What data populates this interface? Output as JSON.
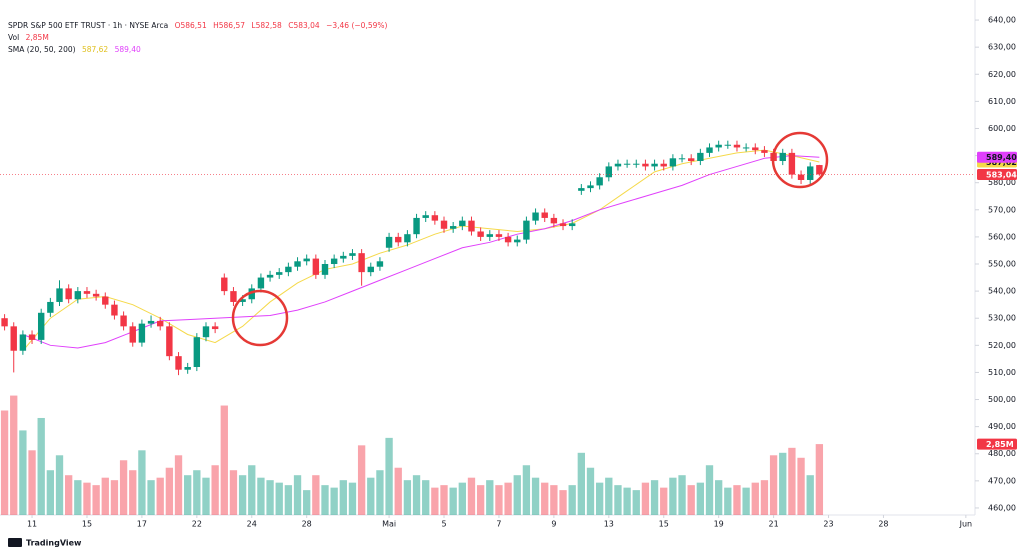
{
  "chart_data": {
    "type": "candlestick",
    "title": "SPDR S&P 500 ETF TRUST · 1h · NYSE Arca",
    "legend": {
      "ohlc": [
        "O586,51",
        "H586,57",
        "L582,58",
        "C583,04",
        "−3,46 (−0,59%)"
      ],
      "vol_label": "Vol",
      "vol_value": "2,85M",
      "sma_label": "SMA (20, 50, 200)",
      "sma_values": [
        "587,62",
        "589,40"
      ]
    },
    "xlim": [
      -0.5,
      106
    ],
    "xticks": [
      {
        "value": 3,
        "label": "11"
      },
      {
        "value": 9,
        "label": "15"
      },
      {
        "value": 15,
        "label": "17"
      },
      {
        "value": 21,
        "label": "22"
      },
      {
        "value": 27,
        "label": "24"
      },
      {
        "value": 33,
        "label": "28"
      },
      {
        "value": 42,
        "label": "Mai"
      },
      {
        "value": 48,
        "label": "5"
      },
      {
        "value": 54,
        "label": "7"
      },
      {
        "value": 60,
        "label": "9"
      },
      {
        "value": 66,
        "label": "13"
      },
      {
        "value": 72,
        "label": "15"
      },
      {
        "value": 78,
        "label": "19"
      },
      {
        "value": 84,
        "label": "21"
      },
      {
        "value": 90,
        "label": "23"
      },
      {
        "value": 96,
        "label": "28"
      },
      {
        "value": 105,
        "label": "Jun"
      }
    ],
    "ylim": [
      457.4,
      647.4
    ],
    "yticks": [
      {
        "value": 460,
        "label": "460,00"
      },
      {
        "value": 470,
        "label": "470,00"
      },
      {
        "value": 480,
        "label": "480,00"
      },
      {
        "value": 490,
        "label": "490,00"
      },
      {
        "value": 500,
        "label": "500,00"
      },
      {
        "value": 510,
        "label": "510,00"
      },
      {
        "value": 520,
        "label": "520,00"
      },
      {
        "value": 530,
        "label": "530,00"
      },
      {
        "value": 540,
        "label": "540,00"
      },
      {
        "value": 550,
        "label": "550,00"
      },
      {
        "value": 560,
        "label": "560,00"
      },
      {
        "value": 570,
        "label": "570,00"
      },
      {
        "value": 580,
        "label": "580,00"
      },
      {
        "value": 590,
        "label": "590,00"
      },
      {
        "value": 600,
        "label": "600,00"
      },
      {
        "value": 610,
        "label": "610,00"
      },
      {
        "value": 620,
        "label": "620,00"
      },
      {
        "value": 630,
        "label": "630,00"
      },
      {
        "value": 640,
        "label": "640,00"
      }
    ],
    "y2lim": [
      0,
      20.7
    ],
    "grid": false,
    "up_color": "#089981",
    "down_color": "#f23645",
    "series": [
      {
        "open": [
          530,
          527,
          518,
          524,
          522,
          532,
          536,
          541,
          537,
          540,
          539,
          538,
          535,
          531,
          527,
          521,
          528,
          529,
          527,
          516,
          511,
          512,
          523,
          527,
          545,
          540,
          536,
          537,
          541,
          545,
          546,
          547,
          549,
          551,
          552,
          546,
          550,
          552,
          553,
          554,
          547,
          549,
          556,
          560,
          558,
          561,
          567,
          568,
          566,
          563,
          564,
          566,
          562,
          560,
          561,
          560,
          558,
          559,
          566,
          569,
          567,
          565,
          564,
          577,
          578,
          579,
          582,
          586,
          587,
          587,
          587,
          586,
          587,
          586,
          589,
          589,
          588,
          591,
          593,
          594,
          594,
          593,
          593,
          592,
          591,
          588,
          591,
          583,
          581,
          586.51
        ],
        "high": [
          531.5,
          528.5,
          525.5,
          525.5,
          533.5,
          537.5,
          544,
          542.5,
          541.5,
          541.5,
          540.5,
          539.5,
          536.5,
          532.5,
          528.5,
          529.5,
          531,
          530.5,
          528.5,
          517.5,
          513.5,
          524.5,
          528.5,
          528.5,
          546.5,
          541.5,
          538.5,
          542.5,
          546.5,
          547.5,
          548.5,
          550.5,
          552.5,
          553.5,
          553.5,
          551.5,
          553.5,
          554.5,
          555.5,
          555.5,
          550.5,
          552.5,
          561.5,
          561.5,
          562.5,
          568.5,
          569.5,
          569.5,
          567.5,
          565.5,
          567.5,
          567.5,
          563.5,
          562.5,
          562.5,
          561.5,
          560.5,
          567.5,
          570.5,
          570.5,
          568.5,
          566.5,
          566.5,
          579.5,
          580.5,
          583.5,
          587.5,
          588.5,
          588.5,
          588.5,
          588.5,
          588.5,
          588.5,
          590.5,
          590.5,
          590.5,
          592.5,
          594.5,
          595.5,
          595.5,
          595.5,
          594.5,
          594.5,
          593.5,
          592.5,
          592.5,
          592.5,
          584.5,
          587.5,
          586.57
        ],
        "low": [
          525.5,
          510,
          516.5,
          520.5,
          520.5,
          530.5,
          534.5,
          535.5,
          535.5,
          537.5,
          536.5,
          533.5,
          529.5,
          525.5,
          519.5,
          519.5,
          526.5,
          525.5,
          514.5,
          509,
          509.5,
          510.5,
          521.5,
          524.5,
          538.5,
          534.5,
          534.5,
          535.5,
          539.5,
          543.5,
          544.5,
          545.5,
          547.5,
          549.5,
          544.5,
          544.5,
          548.5,
          550.5,
          551.5,
          542,
          545.5,
          547.5,
          554.5,
          556.5,
          556.5,
          559.5,
          565.5,
          564.5,
          561.5,
          561.5,
          562.5,
          560.5,
          558.5,
          558.5,
          558.5,
          556.5,
          556.5,
          557.5,
          564.5,
          565.5,
          563.5,
          562.5,
          562.5,
          575.5,
          576.5,
          577.5,
          580.5,
          584.5,
          585.5,
          585.5,
          584.5,
          584.5,
          584.5,
          584.5,
          587.5,
          586.5,
          586.5,
          589.5,
          591.5,
          592.5,
          591.5,
          591.5,
          590.5,
          589.5,
          586.5,
          586.5,
          581.5,
          579.5,
          579.5,
          582.58
        ],
        "close": [
          527,
          518,
          524,
          522,
          532,
          536,
          541,
          537,
          540,
          539,
          538,
          535,
          531,
          527,
          521,
          528,
          529,
          527,
          516,
          511,
          512,
          523,
          527,
          526,
          540,
          536,
          537,
          541,
          545,
          546,
          547,
          549,
          551,
          552,
          546,
          550,
          552,
          553,
          554,
          547,
          549,
          551,
          560,
          558,
          561,
          567,
          568,
          566,
          563,
          564,
          566,
          562,
          560,
          561,
          560,
          558,
          559,
          566,
          569,
          567,
          565,
          564,
          565,
          578,
          579,
          582,
          586,
          587,
          587,
          587,
          586,
          587,
          586,
          589,
          589,
          588,
          591,
          593,
          594,
          594,
          593,
          593,
          592,
          591,
          588,
          591,
          583,
          581,
          586,
          583.04
        ],
        "last_label": "583,04"
      },
      {
        "name": "Vol",
        "axis": "y2",
        "values": [
          4.2,
          4.8,
          3.4,
          2.6,
          3.9,
          1.8,
          2.4,
          1.6,
          1.4,
          1.3,
          1.2,
          1.5,
          1.4,
          2.2,
          1.8,
          2.6,
          1.4,
          1.5,
          1.9,
          2.4,
          1.6,
          1.8,
          1.5,
          2.0,
          4.4,
          1.8,
          1.6,
          2.0,
          1.5,
          1.4,
          1.3,
          1.2,
          1.6,
          1.0,
          1.6,
          1.2,
          1.1,
          1.4,
          1.3,
          2.8,
          1.5,
          1.8,
          3.1,
          1.9,
          1.4,
          1.6,
          1.4,
          1.1,
          1.2,
          1.1,
          1.3,
          1.5,
          1.2,
          1.4,
          1.2,
          1.3,
          1.6,
          2.0,
          1.5,
          1.3,
          1.2,
          1.0,
          1.2,
          2.5,
          1.9,
          1.3,
          1.5,
          1.2,
          1.1,
          1.0,
          1.3,
          1.4,
          1.1,
          1.5,
          1.6,
          1.2,
          1.3,
          2.0,
          1.4,
          1.1,
          1.2,
          1.1,
          1.3,
          1.4,
          2.4,
          2.5,
          2.7,
          2.3,
          1.6,
          2.85
        ],
        "last_label": "2,85M"
      },
      {
        "color": "#f5d94a",
        "x": [
          2,
          5,
          8,
          11,
          14,
          17,
          20,
          23,
          26,
          29,
          32,
          35,
          38,
          41,
          44,
          47,
          50,
          53,
          56,
          59,
          62,
          65,
          68,
          71,
          74,
          77,
          80,
          83,
          86,
          89
        ],
        "values": [
          518,
          530,
          537,
          538,
          535,
          530,
          524,
          521,
          527,
          536,
          543,
          548,
          550,
          554,
          557,
          561,
          564,
          563,
          562,
          563,
          565,
          570,
          577,
          584,
          587,
          589,
          591,
          592,
          590,
          587.62
        ],
        "last_label": "587,62"
      },
      {
        "color": "#e040fb",
        "x": [
          2,
          5,
          8,
          11,
          14,
          17,
          20,
          23,
          26,
          29,
          32,
          35,
          38,
          41,
          44,
          47,
          50,
          53,
          56,
          59,
          62,
          65,
          68,
          71,
          74,
          77,
          80,
          83,
          86,
          89
        ],
        "values": [
          524,
          520,
          519,
          521,
          525,
          529,
          529.5,
          530,
          530.5,
          531,
          533,
          536,
          540,
          544,
          548,
          552,
          556,
          558,
          561,
          563,
          566,
          570,
          573,
          576,
          579,
          583,
          586,
          589,
          590,
          589.4
        ],
        "last_label": "589,40"
      }
    ]
  },
  "footer": {
    "brand": "TradingView"
  }
}
